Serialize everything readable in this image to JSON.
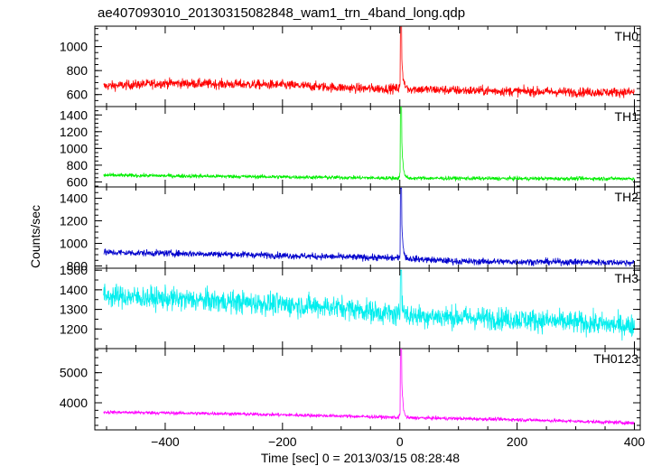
{
  "chart_data": {
    "type": "line",
    "title": "ae407093010_20130315082848_wam1_trn_4band_long.qdp",
    "xlabel": "Time [sec] 0 = 2013/03/15 08:28:48",
    "ylabel": "Counts/sec",
    "xlim": [
      -520,
      410
    ],
    "xticks": [
      -400,
      -200,
      0,
      200,
      400
    ],
    "grid": false,
    "panels": [
      {
        "name": "TH0",
        "color": "#ff0000",
        "ylim": [
          500,
          1170
        ],
        "yticks": [
          600,
          800,
          1000
        ],
        "baseline": [
          [
            -505,
            670
          ],
          [
            -400,
            695
          ],
          [
            -200,
            680
          ],
          [
            -60,
            650
          ],
          [
            0,
            650
          ],
          [
            100,
            635
          ],
          [
            300,
            620
          ],
          [
            400,
            620
          ]
        ],
        "noise": 38,
        "peak": {
          "x": 2,
          "value": 1170
        }
      },
      {
        "name": "TH1",
        "color": "#00ee00",
        "ylim": [
          540,
          1500
        ],
        "yticks": [
          600,
          800,
          1000,
          1200,
          1400
        ],
        "baseline": [
          [
            -505,
            680
          ],
          [
            -200,
            660
          ],
          [
            0,
            645
          ],
          [
            200,
            640
          ],
          [
            400,
            640
          ]
        ],
        "noise": 22,
        "peak": {
          "x": 2,
          "value": 1500
        }
      },
      {
        "name": "TH2",
        "color": "#0000cc",
        "ylim": [
          780,
          1500
        ],
        "yticks": [
          800,
          1000,
          1200,
          1400
        ],
        "baseline": [
          [
            -505,
            920
          ],
          [
            -300,
            905
          ],
          [
            -100,
            880
          ],
          [
            0,
            870
          ],
          [
            100,
            840
          ],
          [
            300,
            835
          ],
          [
            400,
            830
          ]
        ],
        "noise": 28,
        "peak": {
          "x": 2,
          "value": 1490
        }
      },
      {
        "name": "TH3",
        "color": "#00eeee",
        "ylim": [
          1100,
          1510
        ],
        "yticks": [
          1200,
          1300,
          1400,
          1500
        ],
        "baseline": [
          [
            -505,
            1370
          ],
          [
            -300,
            1340
          ],
          [
            -100,
            1310
          ],
          [
            0,
            1270
          ],
          [
            200,
            1250
          ],
          [
            400,
            1215
          ]
        ],
        "noise": 55,
        "peak": {
          "x": 2,
          "value": 1500
        }
      },
      {
        "name": "TH0123",
        "color": "#ff00ff",
        "ylim": [
          3100,
          5800
        ],
        "yticks": [
          4000,
          5000
        ],
        "baseline": [
          [
            -505,
            3690
          ],
          [
            -300,
            3640
          ],
          [
            -100,
            3560
          ],
          [
            0,
            3510
          ],
          [
            200,
            3440
          ],
          [
            400,
            3330
          ]
        ],
        "noise": 55,
        "peak": {
          "x": 2,
          "value": 5800
        }
      }
    ]
  }
}
